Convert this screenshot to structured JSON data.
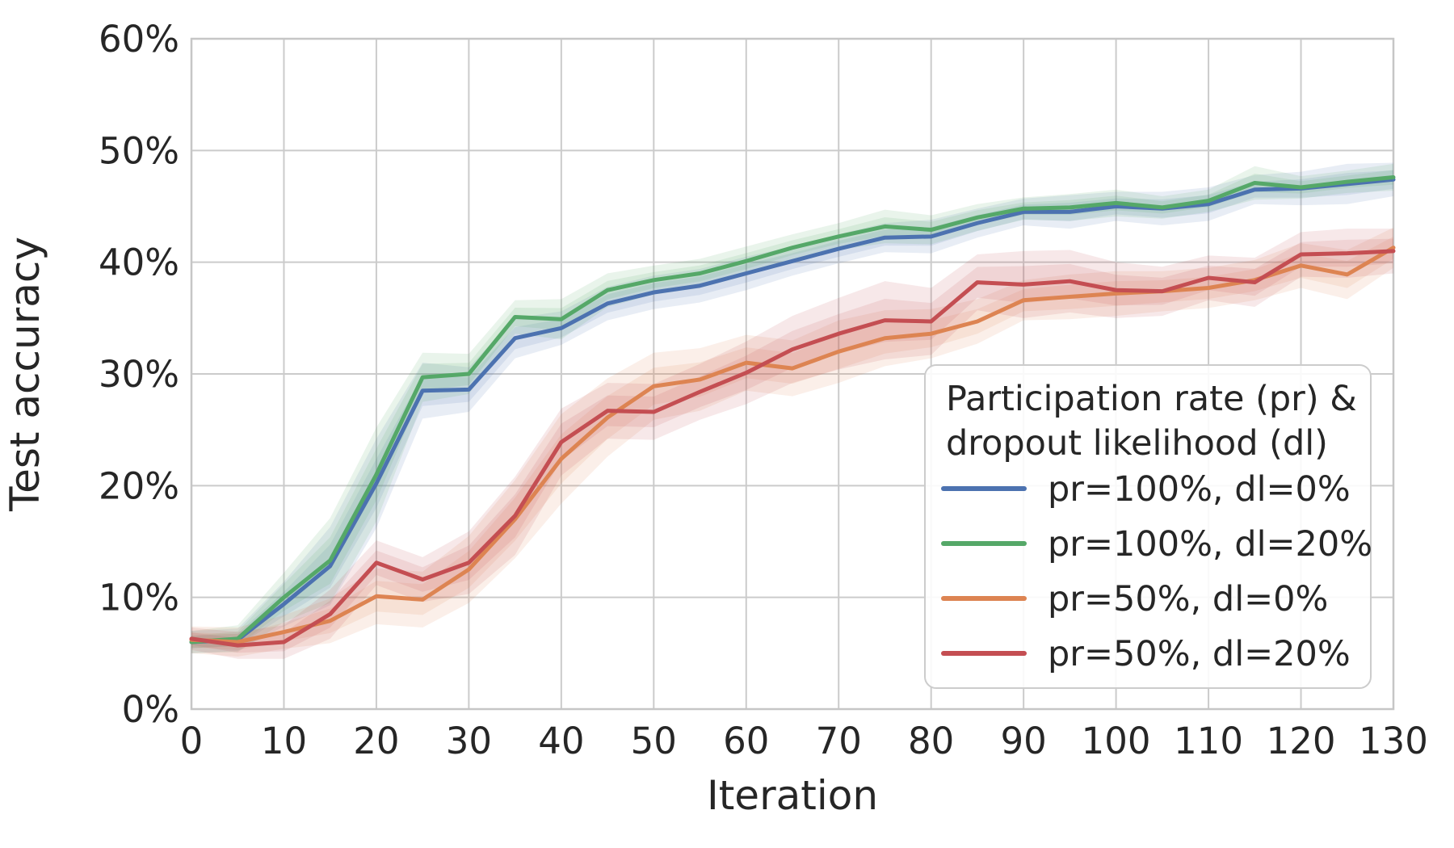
{
  "figure": {
    "background": "#ffffff",
    "text_color": "#262626",
    "grid_color": "#cbcbcb",
    "spine_color": "#c6c6c6",
    "legend_border_color": "#cccccc",
    "legend_background": "#ffffff"
  },
  "chart_data": {
    "type": "line",
    "title": "",
    "xlabel": "Iteration",
    "ylabel": "Test accuracy",
    "xlim": [
      0,
      130
    ],
    "ylim": [
      0,
      60
    ],
    "grid": true,
    "legend_position": "lower right",
    "xticks": {
      "values": [
        0,
        10,
        20,
        30,
        40,
        50,
        60,
        70,
        80,
        90,
        100,
        110,
        120,
        130
      ],
      "labels": [
        "0",
        "10",
        "20",
        "30",
        "40",
        "50",
        "60",
        "70",
        "80",
        "90",
        "100",
        "110",
        "120",
        "130"
      ]
    },
    "yticks": {
      "values": [
        0,
        10,
        20,
        30,
        40,
        50,
        60
      ],
      "labels": [
        "0%",
        "10%",
        "20%",
        "30%",
        "40%",
        "50%",
        "60%"
      ]
    },
    "x": [
      0,
      5,
      10,
      15,
      20,
      25,
      30,
      35,
      40,
      45,
      50,
      55,
      60,
      65,
      70,
      75,
      80,
      85,
      90,
      95,
      100,
      105,
      110,
      115,
      120,
      125,
      130
    ],
    "series": [
      {
        "name": "pr=100%, dl=0%",
        "color": "#4C72B0",
        "values": [
          6.0,
          6.2,
          9.4,
          12.8,
          20.2,
          28.5,
          28.6,
          33.2,
          34.1,
          36.3,
          37.3,
          37.9,
          39.0,
          40.1,
          41.2,
          42.2,
          42.3,
          43.5,
          44.5,
          44.5,
          45.0,
          44.8,
          45.2,
          46.5,
          46.6,
          47.0,
          47.4
        ],
        "band": [
          1.0,
          1.0,
          2.0,
          3.5,
          4.0,
          2.5,
          2.0,
          1.8,
          1.5,
          1.5,
          1.5,
          1.5,
          1.5,
          1.3,
          1.3,
          1.3,
          1.5,
          1.3,
          1.2,
          1.5,
          1.3,
          1.5,
          1.5,
          1.3,
          1.5,
          1.8,
          1.5
        ]
      },
      {
        "name": "pr=100%, dl=20%",
        "color": "#55A868",
        "values": [
          6.0,
          6.3,
          10.0,
          13.3,
          21.0,
          29.7,
          30.0,
          35.1,
          34.9,
          37.5,
          38.4,
          39.0,
          40.1,
          41.3,
          42.3,
          43.2,
          42.9,
          44.0,
          44.8,
          44.9,
          45.3,
          44.9,
          45.5,
          47.1,
          46.7,
          47.2,
          47.6
        ],
        "band": [
          1.0,
          1.2,
          2.2,
          3.8,
          4.2,
          2.2,
          1.8,
          1.5,
          1.8,
          1.5,
          1.3,
          1.3,
          1.3,
          1.2,
          1.2,
          1.5,
          1.3,
          1.2,
          1.0,
          1.2,
          1.2,
          1.0,
          1.0,
          1.5,
          1.0,
          1.0,
          1.2
        ]
      },
      {
        "name": "pr=50%, dl=0%",
        "color": "#DD8452",
        "values": [
          6.2,
          6.0,
          6.9,
          7.9,
          10.1,
          9.8,
          12.5,
          17.0,
          22.4,
          26.1,
          28.9,
          29.5,
          31.0,
          30.5,
          32.0,
          33.2,
          33.6,
          34.7,
          36.6,
          36.9,
          37.2,
          37.4,
          37.7,
          38.4,
          39.7,
          38.9,
          41.3
        ],
        "band": [
          1.2,
          1.3,
          1.5,
          2.0,
          2.5,
          2.5,
          3.0,
          3.5,
          4.0,
          3.5,
          3.0,
          2.8,
          2.5,
          2.5,
          2.8,
          2.5,
          2.2,
          2.0,
          1.8,
          2.0,
          2.0,
          1.8,
          1.8,
          1.8,
          2.0,
          2.2,
          1.8
        ]
      },
      {
        "name": "pr=50%, dl=20%",
        "color": "#C44E52",
        "values": [
          6.3,
          5.7,
          6.0,
          8.5,
          13.1,
          11.6,
          13.1,
          17.3,
          23.9,
          26.7,
          26.6,
          28.4,
          30.1,
          32.2,
          33.6,
          34.8,
          34.7,
          38.2,
          38.0,
          38.3,
          37.5,
          37.4,
          38.6,
          38.2,
          40.7,
          40.8,
          41.0
        ],
        "band": [
          1.0,
          1.2,
          1.5,
          2.2,
          2.0,
          2.0,
          2.8,
          3.5,
          3.0,
          2.5,
          2.5,
          2.5,
          2.8,
          3.0,
          3.2,
          3.5,
          3.0,
          2.5,
          3.0,
          2.8,
          2.5,
          2.2,
          2.0,
          2.2,
          2.0,
          2.2,
          2.0
        ]
      }
    ],
    "legend": {
      "title_lines": [
        "Participation rate (pr) &",
        "dropout likelihood (dl)"
      ]
    }
  }
}
